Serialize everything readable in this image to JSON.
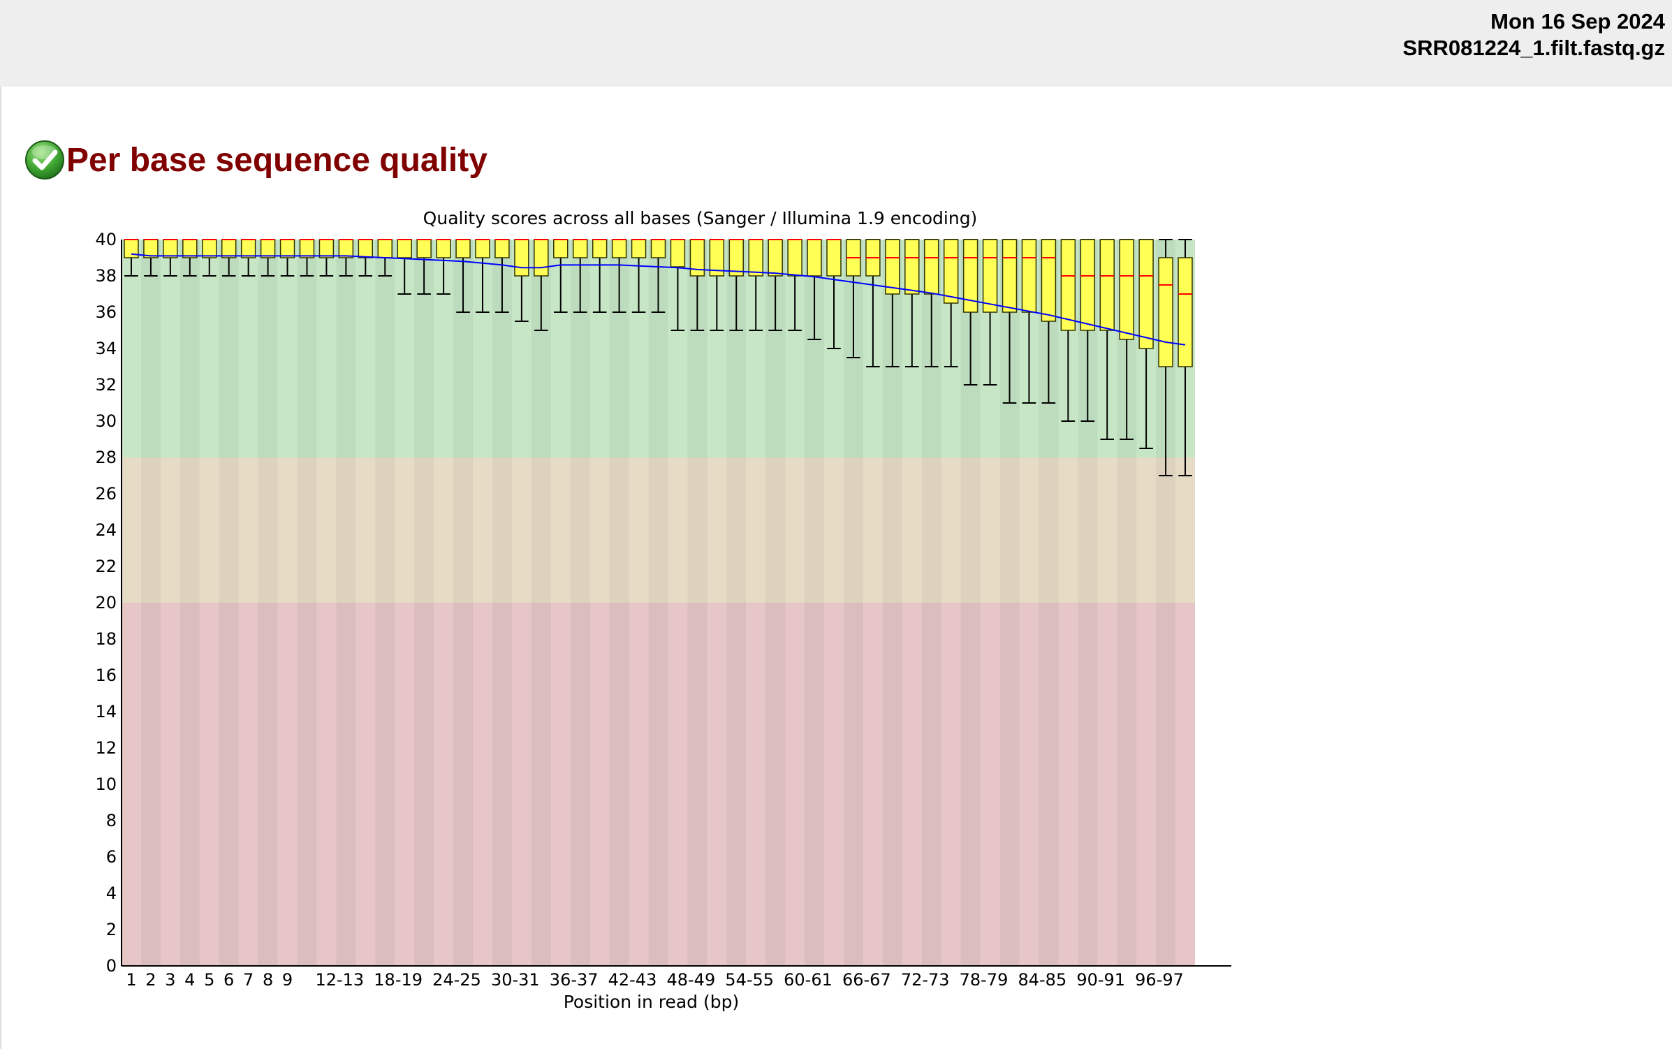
{
  "header": {
    "date": "Mon 16 Sep 2024",
    "filename": "SRR081224_1.filt.fastq.gz"
  },
  "section": {
    "title": "Per base sequence quality",
    "status": "pass",
    "status_icon": "check-circle-icon"
  },
  "chart_data": {
    "type": "box",
    "title": "Quality scores across all bases (Sanger / Illumina 1.9 encoding)",
    "xlabel": "Position in read (bp)",
    "ylabel": "",
    "ylim": [
      0,
      40
    ],
    "yticks": [
      0,
      2,
      4,
      6,
      8,
      10,
      12,
      14,
      16,
      18,
      20,
      22,
      24,
      26,
      28,
      30,
      32,
      34,
      36,
      38,
      40
    ],
    "zones": [
      {
        "from": 28,
        "to": 40,
        "color": "#c6e6c6"
      },
      {
        "from": 20,
        "to": 28,
        "color": "#e6dcc6"
      },
      {
        "from": 0,
        "to": 20,
        "color": "#e6c6c6"
      }
    ],
    "colors": {
      "box": "#ffff55",
      "median": "#ff0000",
      "mean": "#0000ff",
      "whisker": "#000000"
    },
    "categories": [
      "1",
      "2",
      "3",
      "4",
      "5",
      "6",
      "7",
      "8",
      "9",
      "10-11",
      "12-13",
      "14-15",
      "16-17",
      "18-19",
      "20-21",
      "22-23",
      "24-25",
      "26-27",
      "28-29",
      "30-31",
      "32-33",
      "34-35",
      "36-37",
      "38-39",
      "40-41",
      "42-43",
      "44-45",
      "46-47",
      "48-49",
      "50-51",
      "52-53",
      "54-55",
      "56-57",
      "58-59",
      "60-61",
      "62-63",
      "64-65",
      "66-67",
      "68-69",
      "70-71",
      "72-73",
      "74-75",
      "76-77",
      "78-79",
      "80-81",
      "82-83",
      "84-85",
      "86-87",
      "88-89",
      "90-91",
      "92-93",
      "94-95",
      "96-97",
      "98-99",
      "100-101"
    ],
    "tick_labels": [
      "1",
      "2",
      "3",
      "4",
      "5",
      "6",
      "7",
      "8",
      "9",
      "12-13",
      "18-19",
      "24-25",
      "30-31",
      "36-37",
      "42-43",
      "48-49",
      "54-55",
      "60-61",
      "66-67",
      "72-73",
      "78-79",
      "84-85",
      "90-91",
      "96-97"
    ],
    "lower_whisker": [
      38,
      38,
      38,
      38,
      38,
      38,
      38,
      38,
      38,
      38,
      38,
      38,
      38,
      38,
      37,
      37,
      37,
      36,
      36,
      36,
      35.5,
      35,
      36,
      36,
      36,
      36,
      36,
      36,
      35,
      35,
      35,
      35,
      35,
      35,
      35,
      34.5,
      34,
      33.5,
      33,
      33,
      33,
      33,
      33,
      32,
      32,
      31,
      31,
      31,
      30,
      30,
      29,
      29,
      28.5,
      27,
      27
    ],
    "q1": [
      39,
      39,
      39,
      39,
      39,
      39,
      39,
      39,
      39,
      39,
      39,
      39,
      39,
      39,
      39,
      39,
      39,
      39,
      39,
      39,
      38,
      38,
      39,
      39,
      39,
      39,
      39,
      39,
      38.5,
      38,
      38,
      38,
      38,
      38,
      38,
      38,
      38,
      38,
      38,
      37,
      37,
      37,
      36.5,
      36,
      36,
      36,
      36,
      35.5,
      35,
      35,
      35,
      34.5,
      34,
      33,
      33
    ],
    "median": [
      40,
      40,
      40,
      40,
      40,
      40,
      40,
      40,
      40,
      40,
      40,
      40,
      40,
      40,
      40,
      40,
      40,
      40,
      40,
      40,
      40,
      40,
      40,
      40,
      40,
      40,
      40,
      40,
      40,
      40,
      40,
      40,
      40,
      40,
      40,
      40,
      40,
      39,
      39,
      39,
      39,
      39,
      39,
      39,
      39,
      39,
      39,
      39,
      38,
      38,
      38,
      38,
      38,
      37.5,
      37
    ],
    "q3": [
      40,
      40,
      40,
      40,
      40,
      40,
      40,
      40,
      40,
      40,
      40,
      40,
      40,
      40,
      40,
      40,
      40,
      40,
      40,
      40,
      40,
      40,
      40,
      40,
      40,
      40,
      40,
      40,
      40,
      40,
      40,
      40,
      40,
      40,
      40,
      40,
      40,
      40,
      40,
      40,
      40,
      40,
      40,
      40,
      40,
      40,
      40,
      40,
      40,
      40,
      40,
      40,
      40,
      39,
      39
    ],
    "upper_whisker": [
      40,
      40,
      40,
      40,
      40,
      40,
      40,
      40,
      40,
      40,
      40,
      40,
      40,
      40,
      40,
      40,
      40,
      40,
      40,
      40,
      40,
      40,
      40,
      40,
      40,
      40,
      40,
      40,
      40,
      40,
      40,
      40,
      40,
      40,
      40,
      40,
      40,
      40,
      40,
      40,
      40,
      40,
      40,
      40,
      40,
      40,
      40,
      40,
      40,
      40,
      40,
      40,
      40,
      40,
      40
    ],
    "mean": [
      39.2,
      39.1,
      39.1,
      39.1,
      39.1,
      39.1,
      39.1,
      39.1,
      39.1,
      39.1,
      39.1,
      39.1,
      39.05,
      39.0,
      38.95,
      38.9,
      38.85,
      38.8,
      38.7,
      38.6,
      38.45,
      38.45,
      38.6,
      38.6,
      38.6,
      38.6,
      38.55,
      38.5,
      38.45,
      38.35,
      38.3,
      38.25,
      38.2,
      38.15,
      38.05,
      37.95,
      37.8,
      37.65,
      37.5,
      37.35,
      37.2,
      37.05,
      36.85,
      36.65,
      36.45,
      36.25,
      36.05,
      35.85,
      35.6,
      35.35,
      35.1,
      34.85,
      34.6,
      34.35,
      34.2
    ]
  }
}
